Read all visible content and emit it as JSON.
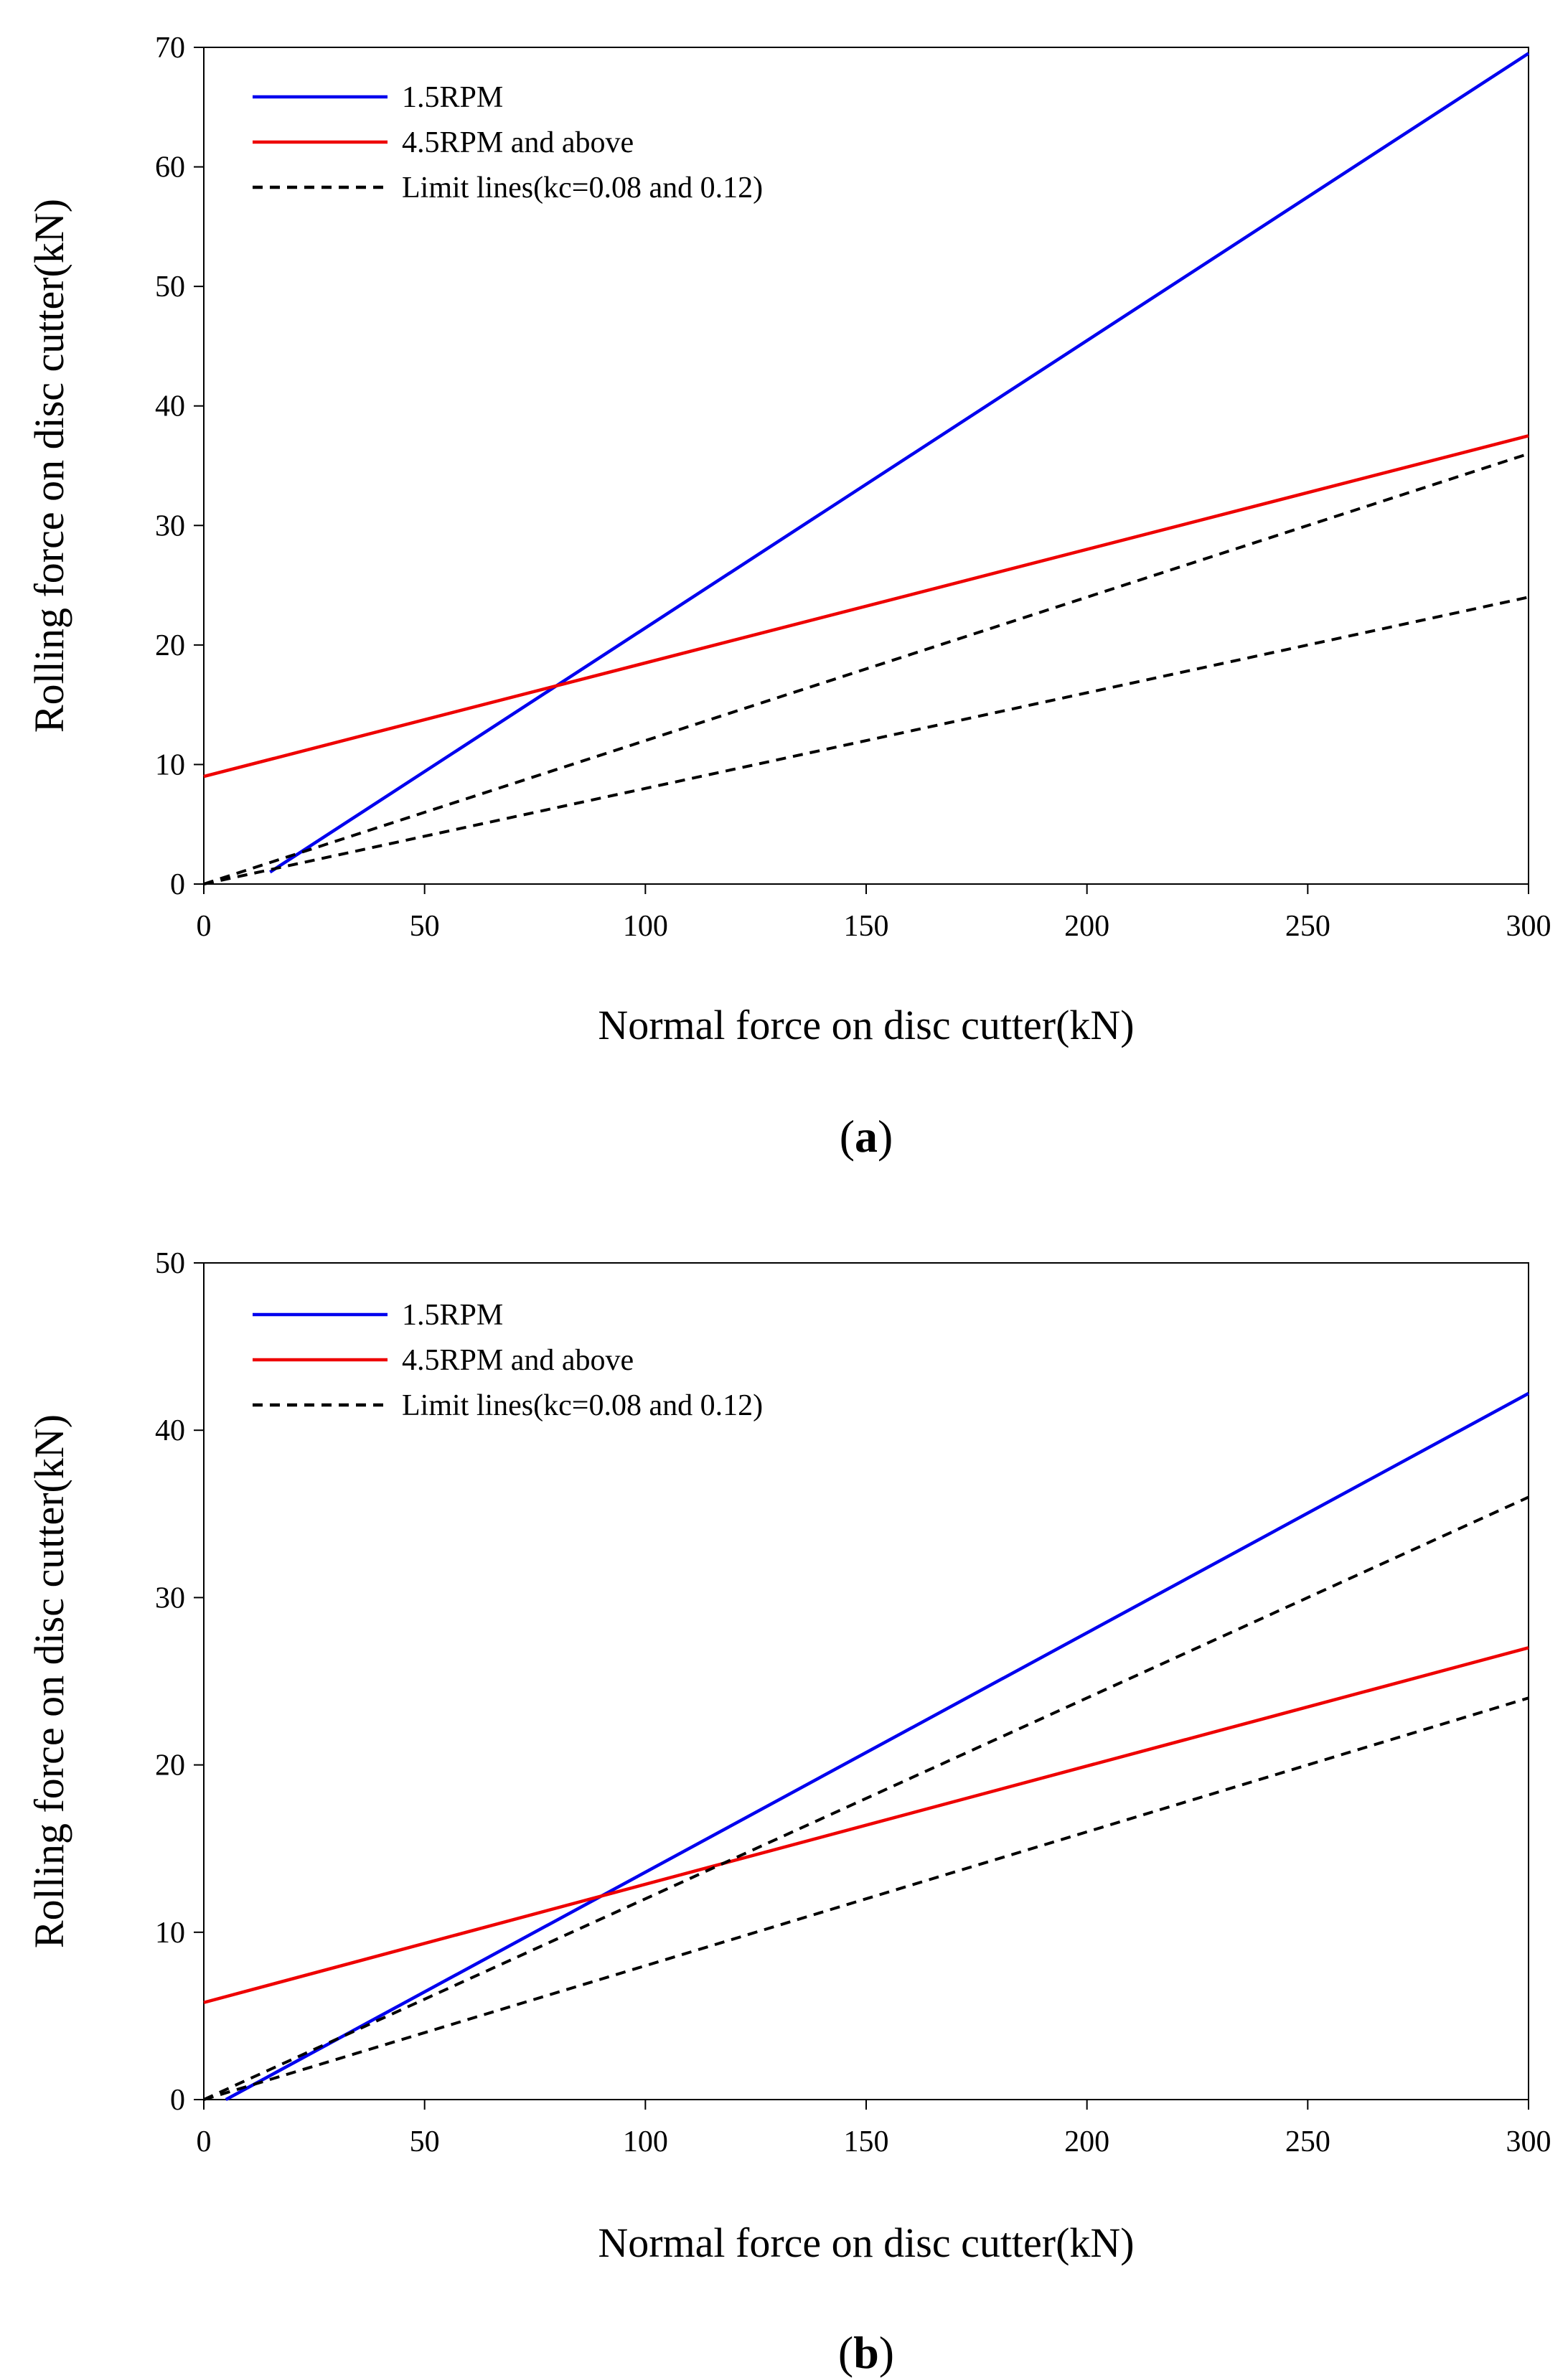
{
  "chart_data": [
    {
      "type": "line",
      "panel_label": "a",
      "xlabel": "Normal force on disc cutter(kN)",
      "ylabel": "Rolling force on disc cutter(kN)",
      "xlim": [
        0,
        300
      ],
      "ylim": [
        0,
        70
      ],
      "xticks": [
        "0",
        "50",
        "100",
        "150",
        "200",
        "250",
        "300"
      ],
      "yticks": [
        "0",
        "10",
        "20",
        "30",
        "40",
        "50",
        "60",
        "70"
      ],
      "grid": false,
      "legend_position": "top-left",
      "series": [
        {
          "name": "1.5RPM",
          "color": "#0000ee",
          "style": "solid",
          "x": [
            15,
            300
          ],
          "y": [
            1,
            69.5
          ]
        },
        {
          "name": "4.5RPM and above",
          "color": "#ee0000",
          "style": "solid",
          "x": [
            0,
            300
          ],
          "y": [
            9,
            37.5
          ]
        },
        {
          "name": "Limit lines(kc=0.08 and 0.12)",
          "color": "#000000",
          "style": "dashed",
          "x": [
            0,
            300
          ],
          "y": [
            0,
            36
          ]
        },
        {
          "name": "",
          "color": "#000000",
          "style": "dashed",
          "x": [
            0,
            300
          ],
          "y": [
            0,
            24
          ]
        }
      ]
    },
    {
      "type": "line",
      "panel_label": "b",
      "xlabel": "Normal force on disc cutter(kN)",
      "ylabel": "Rolling force on disc cutter(kN)",
      "xlim": [
        0,
        300
      ],
      "ylim": [
        0,
        50
      ],
      "xticks": [
        "0",
        "50",
        "100",
        "150",
        "200",
        "250",
        "300"
      ],
      "yticks": [
        "0",
        "10",
        "20",
        "30",
        "40",
        "50"
      ],
      "grid": false,
      "legend_position": "top-left",
      "series": [
        {
          "name": "1.5RPM",
          "color": "#0000ee",
          "style": "solid",
          "x": [
            5,
            300
          ],
          "y": [
            0,
            42.2
          ]
        },
        {
          "name": "4.5RPM and above",
          "color": "#ee0000",
          "style": "solid",
          "x": [
            0,
            300
          ],
          "y": [
            5.8,
            27
          ]
        },
        {
          "name": "Limit lines(kc=0.08 and 0.12)",
          "color": "#000000",
          "style": "dashed",
          "x": [
            0,
            300
          ],
          "y": [
            0,
            36
          ]
        },
        {
          "name": "",
          "color": "#000000",
          "style": "dashed",
          "x": [
            0,
            300
          ],
          "y": [
            0,
            24
          ]
        }
      ]
    }
  ]
}
